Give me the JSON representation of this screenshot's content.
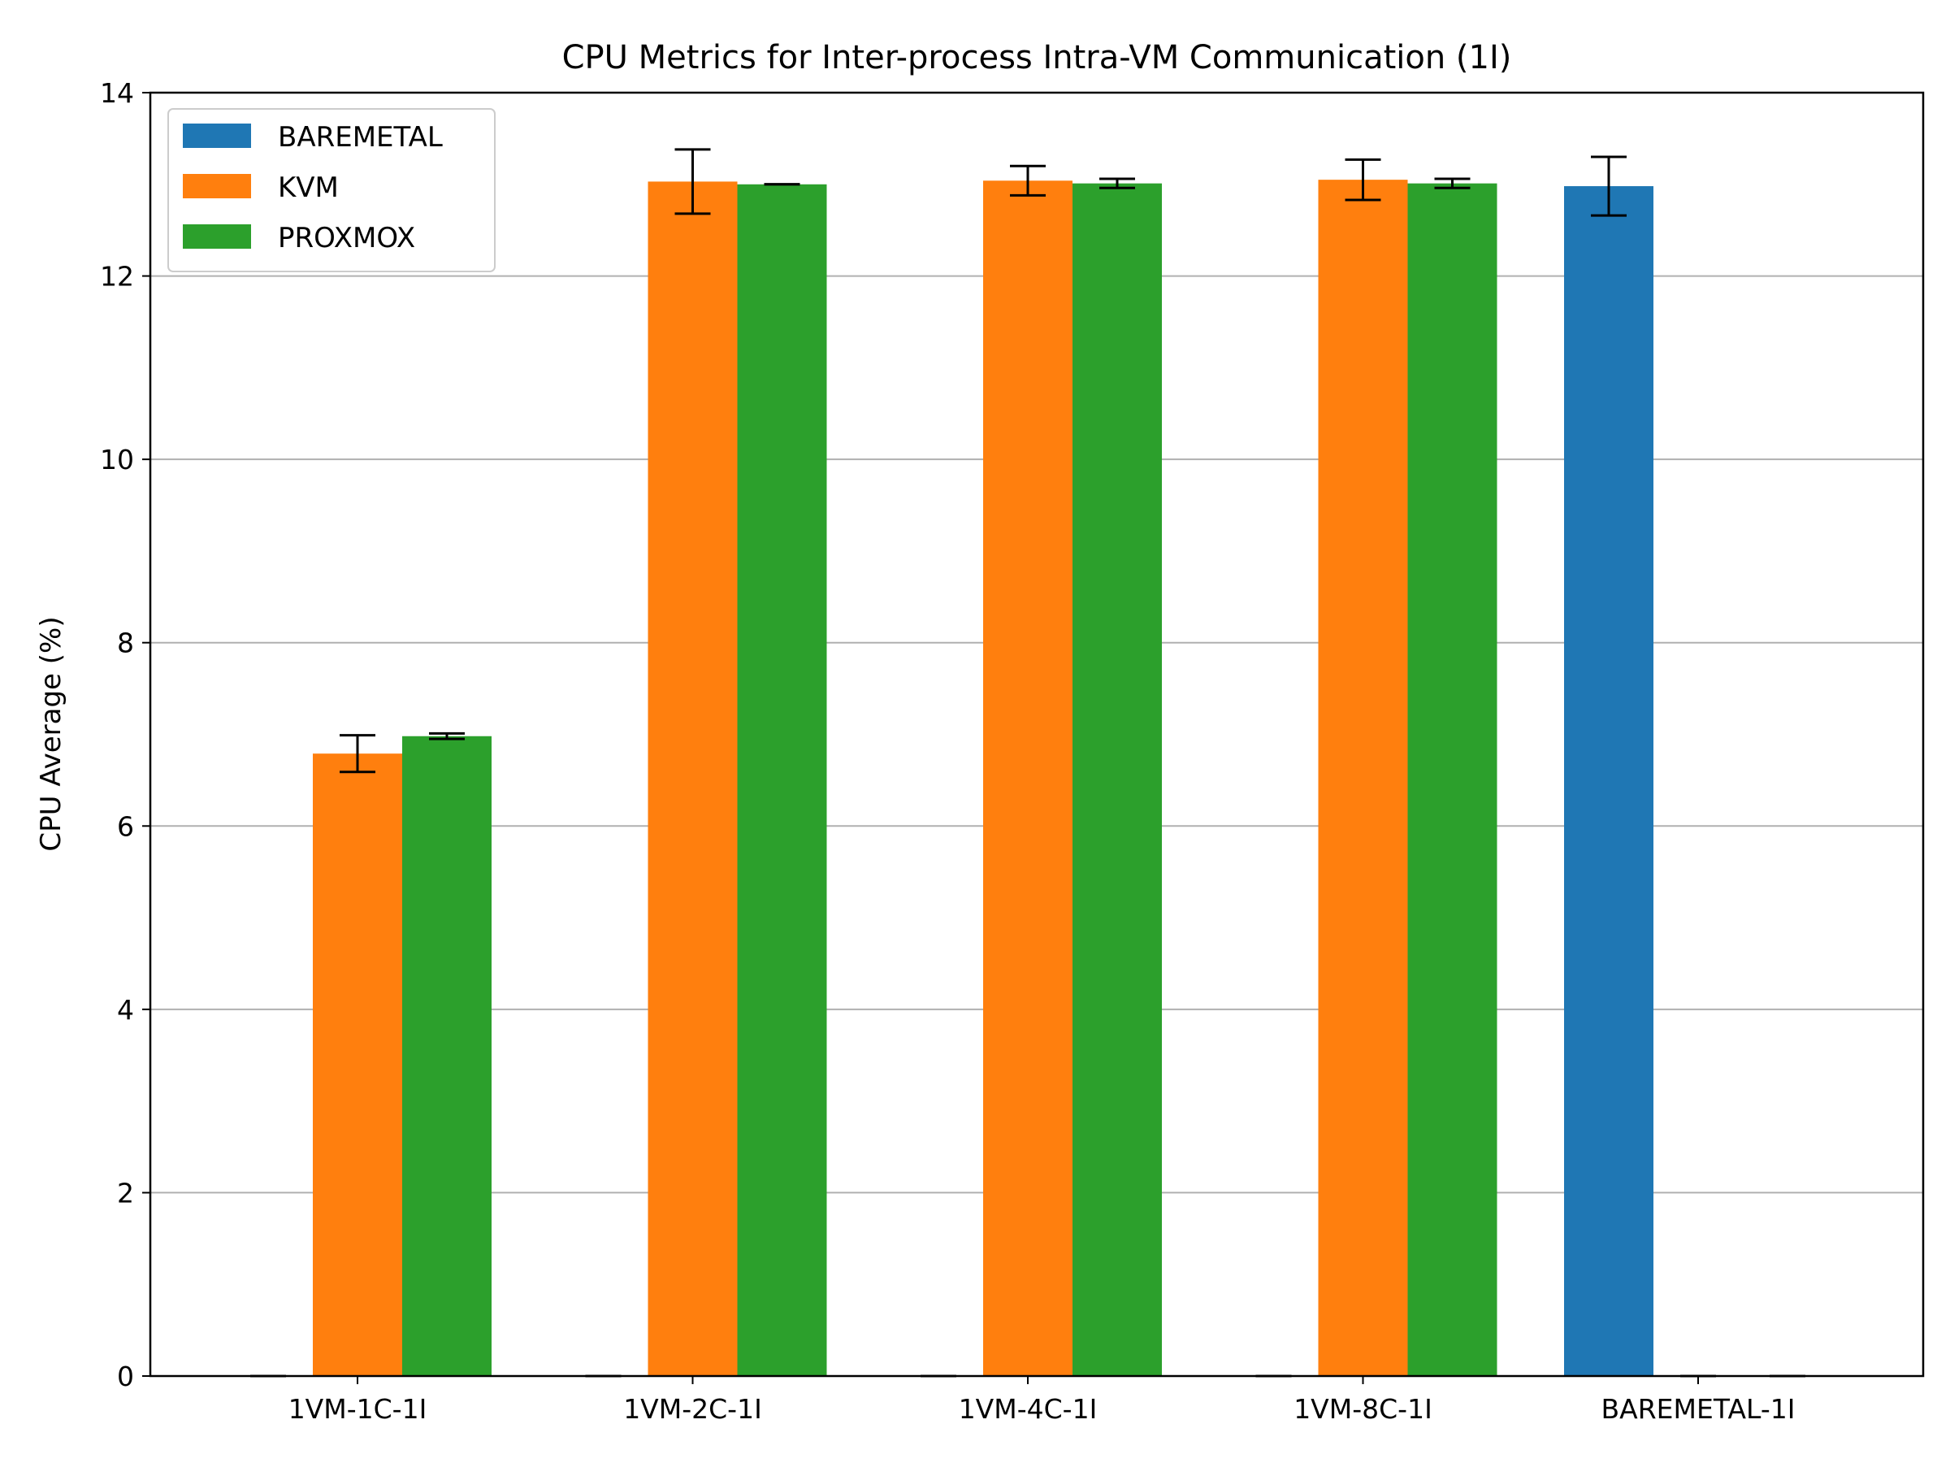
{
  "chart_data": {
    "type": "bar",
    "title": "CPU Metrics for Inter-process Intra-VM Communication (1I)",
    "xlabel": "",
    "ylabel": "CPU Average (%)",
    "ylim": [
      0,
      14
    ],
    "yticks": [
      "0",
      "2",
      "4",
      "6",
      "8",
      "10",
      "12",
      "14"
    ],
    "grid": "y",
    "legend_position": "upper-left",
    "categories": [
      "1VM-1C-1I",
      "1VM-2C-1I",
      "1VM-4C-1I",
      "1VM-8C-1I",
      "BAREMETAL-1I"
    ],
    "series": [
      {
        "name": "BAREMETAL",
        "color": "#1f77b4",
        "values": [
          0,
          0,
          0,
          0,
          12.98
        ],
        "errors": [
          0,
          0,
          0,
          0,
          0.32
        ]
      },
      {
        "name": "KVM",
        "color": "#ff7f0e",
        "values": [
          6.79,
          13.03,
          13.04,
          13.05,
          0
        ],
        "errors": [
          0.2,
          0.35,
          0.16,
          0.22,
          0
        ]
      },
      {
        "name": "PROXMOX",
        "color": "#2ca02c",
        "values": [
          6.98,
          13.0,
          13.01,
          13.01,
          0
        ],
        "errors": [
          0.03,
          0.0,
          0.05,
          0.05,
          0
        ]
      }
    ]
  }
}
